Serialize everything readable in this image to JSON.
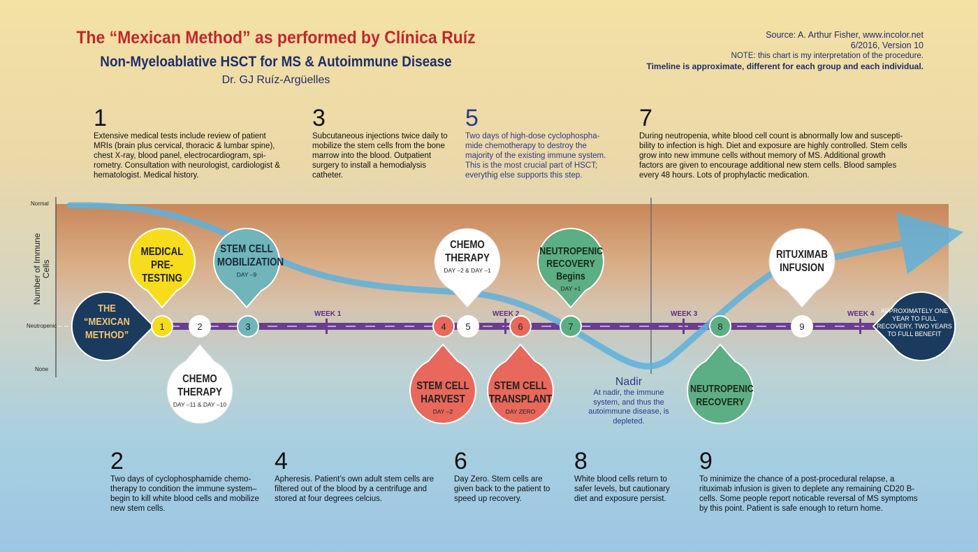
{
  "header": {
    "title": "The “Mexican Method” as performed by Clínica Ruíz",
    "subtitle": "Non-Myeloablative HSCT for MS & Autoimmune Disease",
    "author": "Dr. GJ Ruíz-Argüelles"
  },
  "source": {
    "line1": "Source: A. Arthur Fisher, www.incolor.net",
    "line2": "6/2016, Version 10",
    "note": "NOTE: this chart is my interpretation of the procedure.",
    "bold_note": "Timeline is approximate, different for each group and each individual."
  },
  "steps_top": [
    {
      "num": "1",
      "text": "Extensive medical tests include review of patient MRIs (brain plus cervical, thoracic & lumbar spine), chest X-ray, blood panel, electrocardiogram, spi-rometry. Consultation with neurologist, cardiologist & hematologist. Medical history."
    },
    {
      "num": "3",
      "text": "Subcutaneous injections twice daily to mobilize the stem cells from the bone marrow into the blood. Outpatient surgery to install a hemodialysis catheter."
    },
    {
      "num": "5",
      "text": "Two days of high-dose cyclophospha-mide chemotherapy to destroy the majority of the existing immune system. This is the most crucial part of HSCT; everythig else supports this step."
    },
    {
      "num": "7",
      "text": "During neutropenia, white blood cell count is abnormally low and suscepti-bility to infection is high. Diet and exposure are highly controlled. Stem cells grow into new immune cells without memory of MS. Additional growth factors are given to encourage additional new stem cells. Blood samples every 48 hours. Lots of prophylactic medication."
    }
  ],
  "steps_bottom": [
    {
      "num": "2",
      "text": "Two days of cyclophosphamide chemo-therapy to condition the immune system– begin to kill white blood cells and mobilize new stem cells."
    },
    {
      "num": "4",
      "text": "Apheresis. Patient’s own adult stem cells are filtered out of the blood by a centrifuge and stored at four degrees celcius."
    },
    {
      "num": "6",
      "text": "Day Zero. Stem cells are given back to the patient to speed up recovery."
    },
    {
      "num": "8",
      "text": "White blood cells return to safer levels, but cautionary diet and exposure persist."
    },
    {
      "num": "9",
      "text": "To minimize the chance of a post-procedural relapse, a rituximab infusion is given to deplete any remaining CD20 B-cells. Some people report noticable reversal of MS symptoms by this point. Patient is safe enough to return home."
    }
  ],
  "axis": {
    "title": "Number of Immune Cells",
    "normal": "Normal",
    "neutropenic": "Neutropenic",
    "none": "None"
  },
  "weeks": [
    "WEEK 1",
    "WEEK 2",
    "WEEK 3",
    "WEEK 4"
  ],
  "nodes": [
    "1",
    "2",
    "3",
    "4",
    "5",
    "6",
    "7",
    "8",
    "9"
  ],
  "drops": {
    "start": "THE “MEXICAN METHOD”",
    "medical": "MEDICAL PRE-TESTING",
    "mobilization": "STEM CELL MOBILIZATION",
    "mobilization_day": "DAY –9",
    "chemo2": "CHEMO THERAPY",
    "chemo2_day": "DAY –11 & DAY –10",
    "harvest": "STEM CELL HARVEST",
    "harvest_day": "DAY –2",
    "chemo5": "CHEMO THERAPY",
    "chemo5_day": "DAY –2 & DAY –1",
    "transplant": "STEM CELL TRANSPLANT",
    "transplant_day": "DAY ZERO",
    "neutro7": "NEUTROPENIC RECOVERY Begins",
    "neutro7_day": "DAY +1",
    "neutro8": "NEUTROPENIC RECOVERY",
    "ritux": "RITUXIMAB INFUSION",
    "end": "APPROXIMATELY ONE YEAR TO FULL RECOVERY, TWO YEARS TO FULL BENEFIT"
  },
  "nadir": {
    "title": "Nadir",
    "text": "At nadir, the immune system, and thus the autoimmune disease, is depleted."
  },
  "colors": {
    "yellow": "#f7dc1b",
    "teal": "#6fb5b9",
    "white": "#ffffff",
    "red": "#e8685b",
    "green": "#5cae84",
    "navy": "#1a3a5e",
    "purple": "#6a3d8e",
    "curve": "#5fb1dc"
  }
}
